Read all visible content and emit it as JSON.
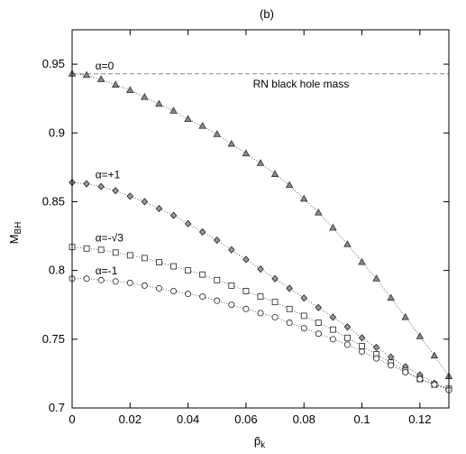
{
  "chart_data": {
    "type": "scatter",
    "title": "(b)",
    "xlabel": "p̃",
    "xlabel_sub": "k",
    "ylabel": "M",
    "ylabel_sub": "BH",
    "xlim": [
      0,
      0.13
    ],
    "ylim": [
      0.7,
      0.975
    ],
    "xticks": [
      0,
      0.02,
      0.04,
      0.06,
      0.08,
      0.1,
      0.12
    ],
    "xtick_labels": [
      "0",
      "0.02",
      "0.04",
      "0.06",
      "0.08",
      "0.1",
      "0.12"
    ],
    "yticks": [
      0.7,
      0.75,
      0.8,
      0.85,
      0.9,
      0.95
    ],
    "ytick_labels": [
      "0.7",
      "0.75",
      "0.8",
      "0.85",
      "0.9",
      "0.95"
    ],
    "grid": false,
    "reference_line": {
      "y": 0.943,
      "label": "RN black hole mass",
      "color": "#888888",
      "style": "dashed"
    },
    "series": [
      {
        "name": "α=0",
        "marker": "triangle",
        "label_at": [
          0.008,
          0.946
        ],
        "x": [
          0.0,
          0.005,
          0.01,
          0.015,
          0.02,
          0.025,
          0.03,
          0.035,
          0.04,
          0.045,
          0.05,
          0.055,
          0.06,
          0.065,
          0.07,
          0.075,
          0.08,
          0.085,
          0.09,
          0.095,
          0.1,
          0.105,
          0.11,
          0.115,
          0.12,
          0.125,
          0.13
        ],
        "y": [
          0.943,
          0.942,
          0.939,
          0.935,
          0.931,
          0.926,
          0.921,
          0.916,
          0.91,
          0.905,
          0.899,
          0.892,
          0.885,
          0.878,
          0.87,
          0.862,
          0.852,
          0.842,
          0.831,
          0.819,
          0.806,
          0.794,
          0.78,
          0.766,
          0.752,
          0.738,
          0.723
        ]
      },
      {
        "name": "α=+1",
        "marker": "diamond",
        "label_at": [
          0.008,
          0.867
        ],
        "x": [
          0.0,
          0.005,
          0.01,
          0.015,
          0.02,
          0.025,
          0.03,
          0.035,
          0.04,
          0.045,
          0.05,
          0.055,
          0.06,
          0.065,
          0.07,
          0.075,
          0.08,
          0.085,
          0.09,
          0.095,
          0.1,
          0.105,
          0.11,
          0.115,
          0.12,
          0.125,
          0.13
        ],
        "y": [
          0.864,
          0.863,
          0.861,
          0.858,
          0.854,
          0.85,
          0.845,
          0.84,
          0.834,
          0.828,
          0.822,
          0.815,
          0.808,
          0.801,
          0.794,
          0.787,
          0.78,
          0.773,
          0.766,
          0.759,
          0.751,
          0.744,
          0.737,
          0.73,
          0.724,
          0.718,
          0.714
        ]
      },
      {
        "name": "α=-√3",
        "marker": "square",
        "label_at": [
          0.008,
          0.821
        ],
        "x": [
          0.0,
          0.005,
          0.01,
          0.015,
          0.02,
          0.025,
          0.03,
          0.035,
          0.04,
          0.045,
          0.05,
          0.055,
          0.06,
          0.065,
          0.07,
          0.075,
          0.08,
          0.085,
          0.09,
          0.095,
          0.1,
          0.105,
          0.11,
          0.115,
          0.12,
          0.125,
          0.13
        ],
        "y": [
          0.817,
          0.816,
          0.815,
          0.813,
          0.811,
          0.809,
          0.806,
          0.803,
          0.8,
          0.797,
          0.793,
          0.789,
          0.785,
          0.781,
          0.777,
          0.772,
          0.767,
          0.762,
          0.757,
          0.751,
          0.745,
          0.739,
          0.733,
          0.727,
          0.721,
          0.717,
          0.714
        ]
      },
      {
        "name": "α=-1",
        "marker": "circle",
        "label_at": [
          0.008,
          0.797
        ],
        "x": [
          0.0,
          0.005,
          0.01,
          0.015,
          0.02,
          0.025,
          0.03,
          0.035,
          0.04,
          0.045,
          0.05,
          0.055,
          0.06,
          0.065,
          0.07,
          0.075,
          0.08,
          0.085,
          0.09,
          0.095,
          0.1,
          0.105,
          0.11,
          0.115,
          0.12,
          0.125,
          0.13
        ],
        "y": [
          0.794,
          0.794,
          0.793,
          0.792,
          0.791,
          0.789,
          0.787,
          0.785,
          0.783,
          0.781,
          0.778,
          0.775,
          0.772,
          0.769,
          0.766,
          0.762,
          0.758,
          0.754,
          0.75,
          0.746,
          0.741,
          0.736,
          0.731,
          0.726,
          0.721,
          0.717,
          0.713
        ]
      }
    ]
  }
}
